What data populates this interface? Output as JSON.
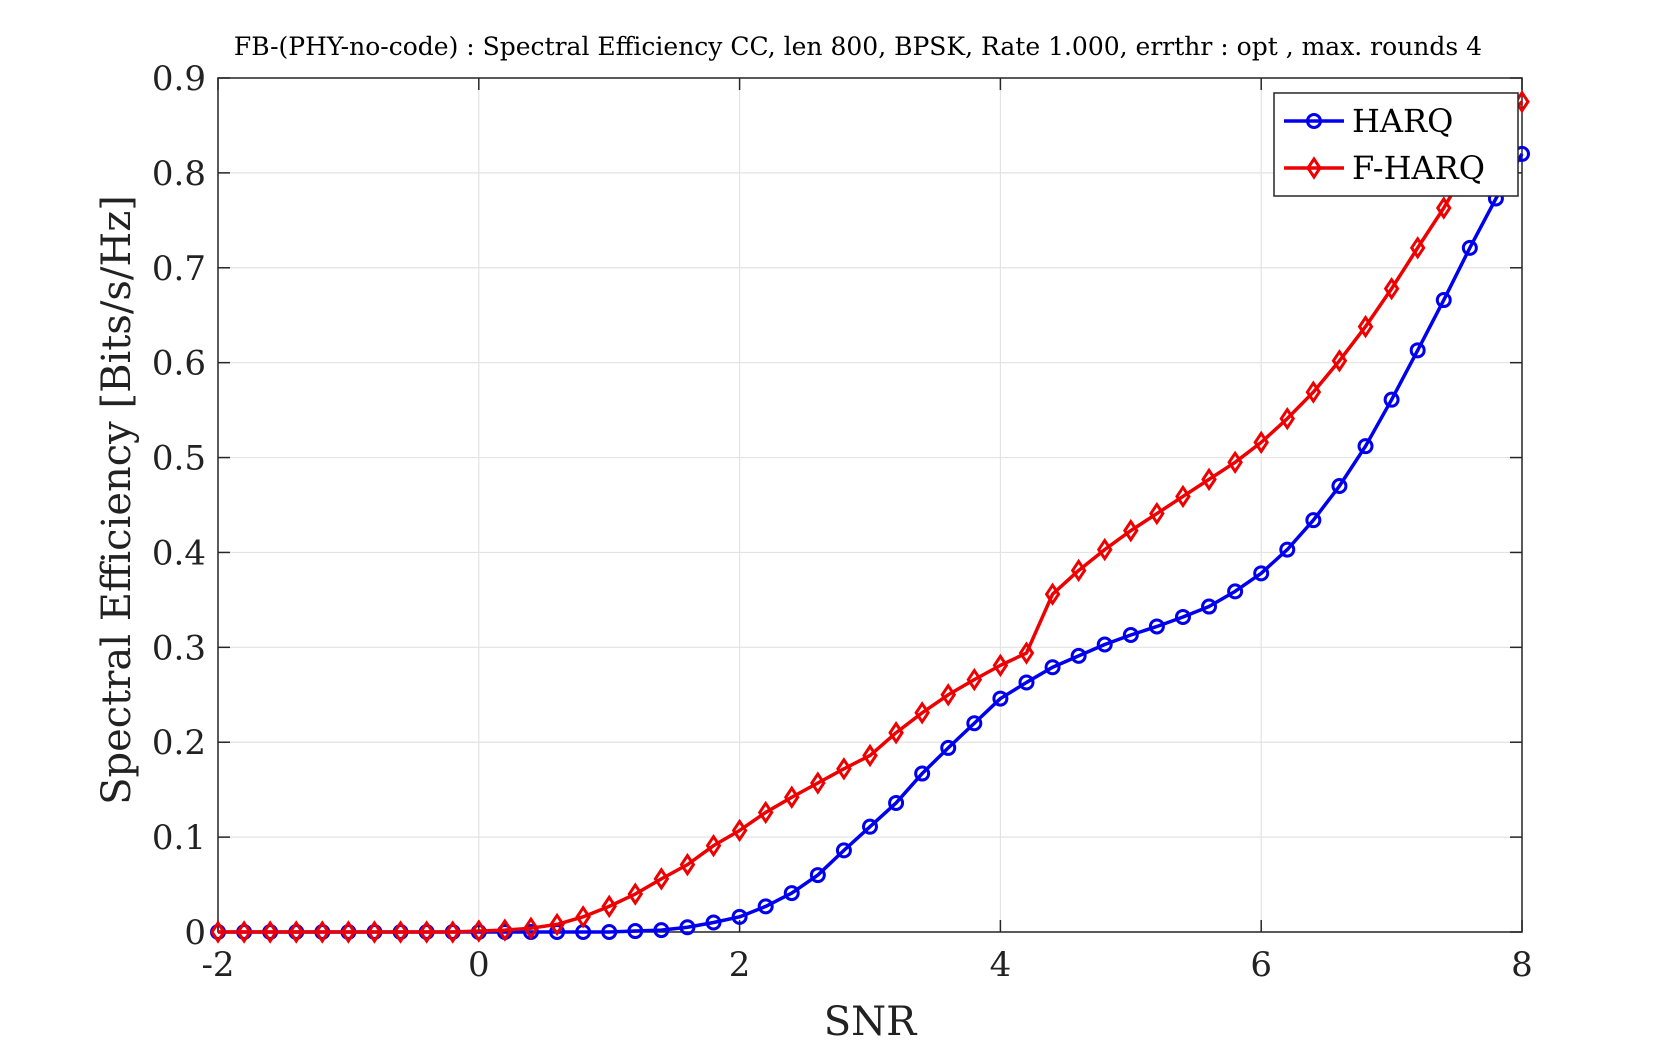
{
  "chart_data": {
    "type": "line",
    "title": "FB-(PHY-no-code) : Spectral Efficiency CC, len 800, BPSK, Rate 1.000, errthr : opt , max. rounds 4",
    "xlabel": "SNR",
    "ylabel": "Spectral Efficiency [Bits/s/Hz]",
    "xlim": [
      -2,
      8
    ],
    "ylim": [
      0,
      0.9
    ],
    "xticks": [
      -2,
      0,
      2,
      4,
      6,
      8
    ],
    "yticks": [
      0,
      0.1,
      0.2,
      0.3,
      0.4,
      0.5,
      0.6,
      0.7,
      0.8,
      0.9
    ],
    "xtick_labels": [
      "-2",
      "0",
      "2",
      "4",
      "6",
      "8"
    ],
    "ytick_labels": [
      "0",
      "0.1",
      "0.2",
      "0.3",
      "0.4",
      "0.5",
      "0.6",
      "0.7",
      "0.8",
      "0.9"
    ],
    "grid": true,
    "legend_position": "top-right",
    "x": [
      -2.0,
      -1.8,
      -1.6,
      -1.4,
      -1.2,
      -1.0,
      -0.8,
      -0.6,
      -0.4,
      -0.2,
      0.0,
      0.2,
      0.4,
      0.6,
      0.8,
      1.0,
      1.2,
      1.4,
      1.6,
      1.8,
      2.0,
      2.2,
      2.4,
      2.6,
      2.8,
      3.0,
      3.2,
      3.4,
      3.6,
      3.8,
      4.0,
      4.2,
      4.4,
      4.6,
      4.8,
      5.0,
      5.2,
      5.4,
      5.6,
      5.8,
      6.0,
      6.2,
      6.4,
      6.6,
      6.8,
      7.0,
      7.2,
      7.4,
      7.6,
      7.8,
      8.0
    ],
    "series": [
      {
        "name": "HARQ",
        "color": "#0000ee",
        "marker": "circle",
        "values": [
          0,
          0,
          0,
          0,
          0,
          0,
          0,
          0,
          0,
          0,
          0,
          0,
          0,
          0,
          0,
          0,
          0.001,
          0.002,
          0.005,
          0.01,
          0.016,
          0.027,
          0.041,
          0.06,
          0.086,
          0.111,
          0.136,
          0.167,
          0.194,
          0.22,
          0.246,
          0.263,
          0.279,
          0.291,
          0.303,
          0.313,
          0.322,
          0.332,
          0.343,
          0.359,
          0.378,
          0.403,
          0.434,
          0.47,
          0.512,
          0.561,
          0.613,
          0.666,
          0.721,
          0.773,
          0.82
        ]
      },
      {
        "name": "F-HARQ",
        "color": "#ee0000",
        "marker": "diamond",
        "values": [
          0,
          0,
          0,
          0,
          0,
          0,
          0,
          0,
          0,
          0,
          0.001,
          0.002,
          0.004,
          0.008,
          0.016,
          0.027,
          0.04,
          0.056,
          0.071,
          0.091,
          0.107,
          0.126,
          0.142,
          0.157,
          0.172,
          0.186,
          0.21,
          0.231,
          0.25,
          0.266,
          0.281,
          0.294,
          0.356,
          0.381,
          0.403,
          0.423,
          0.441,
          0.459,
          0.477,
          0.495,
          0.516,
          0.541,
          0.569,
          0.602,
          0.638,
          0.678,
          0.721,
          0.763,
          0.81,
          0.845,
          0.875
        ]
      }
    ]
  }
}
